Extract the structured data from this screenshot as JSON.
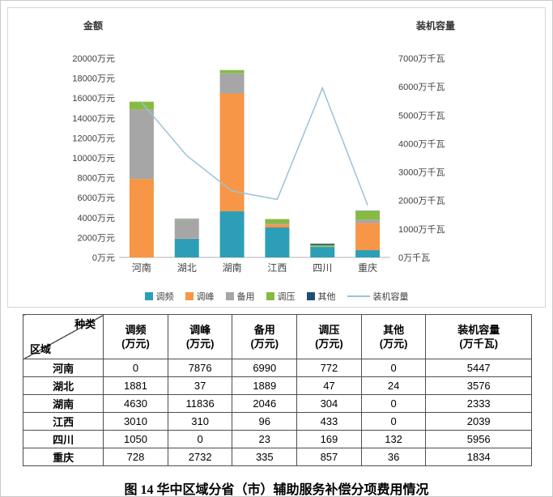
{
  "page": {
    "caption": "图 14  华中区域分省（市）辅助服务补偿分项费用情况"
  },
  "chart_data": {
    "type": "bar",
    "subtype": "stacked-bars-with-line-overlay",
    "categories": [
      "河南",
      "湖北",
      "湖南",
      "江西",
      "四川",
      "重庆"
    ],
    "left_axis": {
      "title": "金额",
      "min": 0,
      "max": 20000,
      "step": 2000,
      "ticks": [
        "0万元",
        "2000万元",
        "4000万元",
        "6000万元",
        "8000万元",
        "10000万元",
        "12000万元",
        "14000万元",
        "16000万元",
        "18000万元",
        "20000万元"
      ]
    },
    "right_axis": {
      "title": "装机容量",
      "min": 0,
      "max": 7000,
      "step": 1000,
      "ticks": [
        "0万千瓦",
        "1000万千瓦",
        "2000万千瓦",
        "3000万千瓦",
        "4000万千瓦",
        "5000万千瓦",
        "6000万千瓦",
        "7000万千瓦"
      ]
    },
    "bar_series": [
      {
        "name": "调频",
        "color": "#2D9EB8",
        "values": [
          0,
          1881,
          4630,
          3010,
          1050,
          728
        ]
      },
      {
        "name": "调峰",
        "color": "#F79646",
        "values": [
          7876,
          37,
          11836,
          310,
          0,
          2732
        ]
      },
      {
        "name": "备用",
        "color": "#A6A6A6",
        "values": [
          6990,
          1889,
          2046,
          96,
          23,
          335
        ]
      },
      {
        "name": "调压",
        "color": "#86BB40",
        "values": [
          772,
          47,
          304,
          433,
          169,
          857
        ]
      },
      {
        "name": "其他",
        "color": "#1F4E79",
        "values": [
          0,
          24,
          0,
          0,
          132,
          36
        ]
      }
    ],
    "line_series": {
      "name": "装机容量",
      "color": "#9CC2D6",
      "values": [
        5447,
        3576,
        2333,
        2039,
        5956,
        1834
      ]
    },
    "legend_position": "bottom",
    "grid": false
  },
  "table": {
    "corner_top": "种类",
    "corner_bottom": "区域",
    "columns": [
      {
        "name": "调频",
        "unit": "(万元)"
      },
      {
        "name": "调峰",
        "unit": "(万元)"
      },
      {
        "name": "备用",
        "unit": "(万元)"
      },
      {
        "name": "调压",
        "unit": "(万元)"
      },
      {
        "name": "其他",
        "unit": "(万元)"
      },
      {
        "name": "装机容量",
        "unit": "(万千瓦)"
      }
    ],
    "rows": [
      {
        "region": "河南",
        "values": [
          "0",
          "7876",
          "6990",
          "772",
          "0",
          "5447"
        ]
      },
      {
        "region": "湖北",
        "values": [
          "1881",
          "37",
          "1889",
          "47",
          "24",
          "3576"
        ]
      },
      {
        "region": "湖南",
        "values": [
          "4630",
          "11836",
          "2046",
          "304",
          "0",
          "2333"
        ]
      },
      {
        "region": "江西",
        "values": [
          "3010",
          "310",
          "96",
          "433",
          "0",
          "2039"
        ]
      },
      {
        "region": "四川",
        "values": [
          "1050",
          "0",
          "23",
          "169",
          "132",
          "5956"
        ]
      },
      {
        "region": "重庆",
        "values": [
          "728",
          "2732",
          "335",
          "857",
          "36",
          "1834"
        ]
      }
    ]
  }
}
